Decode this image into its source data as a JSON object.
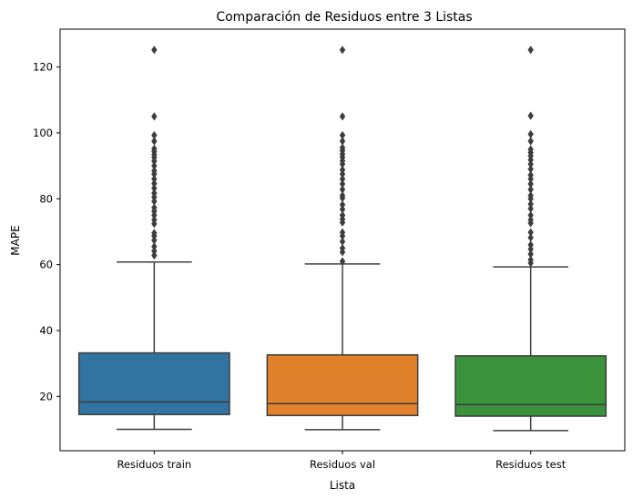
{
  "chart_data": {
    "type": "box",
    "title": "Comparación de Residuos entre 3 Listas",
    "xlabel": "Lista",
    "ylabel": "MAPE",
    "ylim": [
      3.5,
      131.5
    ],
    "yticks": [
      20,
      40,
      60,
      80,
      100,
      120
    ],
    "categories": [
      "Residuos train",
      "Residuos val",
      "Residuos test"
    ],
    "colors": [
      "#3274a1",
      "#e1812c",
      "#3a923a"
    ],
    "median_color": "#3d3d3d",
    "grid": false,
    "legend": "none",
    "series": [
      {
        "category": "Residuos train",
        "whisker_low": 10.0,
        "q1": 14.5,
        "median": 18.3,
        "q3": 33.2,
        "whisker_high": 60.8,
        "outliers": [
          62.8,
          64.1,
          65.5,
          67.4,
          68.7,
          69.6,
          72.4,
          73.6,
          75.0,
          76.2,
          77.3,
          79.2,
          80.5,
          81.7,
          83.2,
          84.6,
          86.0,
          87.5,
          88.5,
          90.0,
          91.4,
          92.5,
          93.4,
          94.3,
          95.2,
          97.5,
          99.3,
          105.0,
          125.2
        ]
      },
      {
        "category": "Residuos val",
        "whisker_low": 9.9,
        "q1": 14.2,
        "median": 17.8,
        "q3": 32.6,
        "whisker_high": 60.2,
        "outliers": [
          61.0,
          63.8,
          65.0,
          67.0,
          68.7,
          69.8,
          72.8,
          73.8,
          75.0,
          76.8,
          78.2,
          80.2,
          81.0,
          82.8,
          84.5,
          86.0,
          87.5,
          88.8,
          90.5,
          91.5,
          92.6,
          93.6,
          94.6,
          95.5,
          97.5,
          99.3,
          105.0,
          125.2
        ]
      },
      {
        "category": "Residuos test",
        "whisker_low": 9.6,
        "q1": 14.0,
        "median": 17.5,
        "q3": 32.3,
        "whisker_high": 59.3,
        "outliers": [
          60.5,
          61.5,
          63.2,
          64.7,
          66.0,
          68.2,
          69.8,
          72.6,
          73.6,
          75.0,
          77.0,
          78.4,
          80.0,
          81.0,
          82.8,
          84.5,
          86.0,
          87.2,
          89.0,
          90.5,
          91.8,
          93.0,
          94.0,
          95.0,
          97.5,
          99.6,
          105.2,
          125.2
        ]
      }
    ]
  }
}
